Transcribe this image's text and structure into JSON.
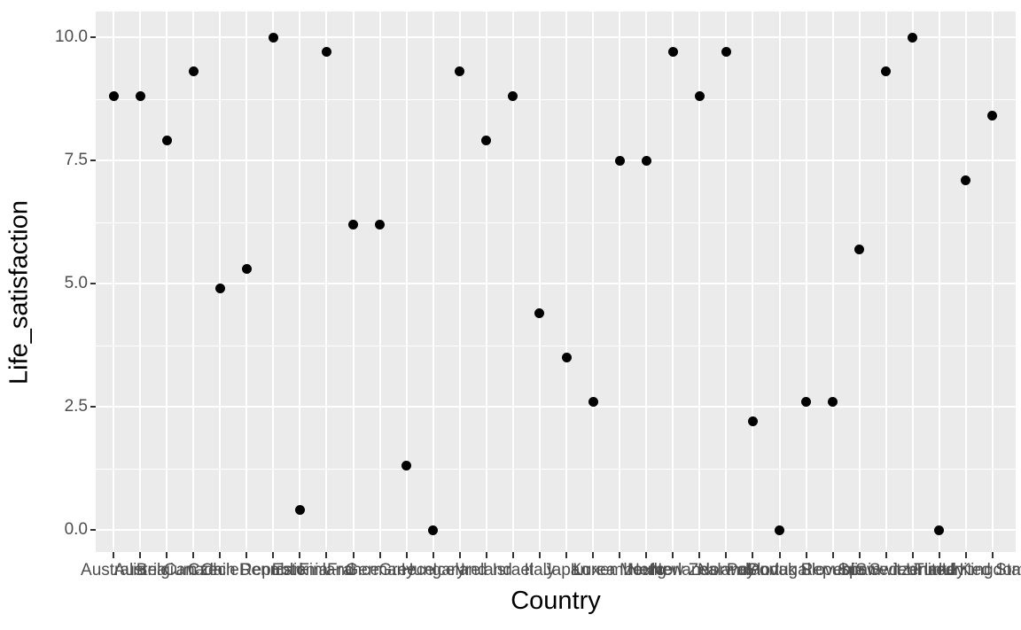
{
  "chart_data": {
    "type": "scatter",
    "title": "",
    "xlabel": "Country",
    "ylabel": "Life_satisfaction",
    "categories": [
      "Australia",
      "Austria",
      "Belgium",
      "Canada",
      "Chile",
      "Czech Republic",
      "Denmark",
      "Estonia",
      "Finland",
      "France",
      "Germany",
      "Greece",
      "Hungary",
      "Iceland",
      "Ireland",
      "Israel",
      "Italy",
      "Japan",
      "Korea",
      "Luxembourg",
      "Mexico",
      "Netherlands",
      "New Zealand",
      "Norway",
      "Poland",
      "Portugal",
      "Slovak Republic",
      "Slovenia",
      "Spain",
      "Sweden",
      "Switzerland",
      "Turkey",
      "United Kingdom",
      "United States"
    ],
    "values": [
      8.8,
      8.8,
      7.9,
      9.3,
      4.9,
      5.3,
      10.0,
      0.4,
      9.7,
      6.2,
      6.2,
      1.3,
      0.0,
      9.3,
      7.9,
      8.8,
      4.4,
      3.5,
      2.6,
      7.5,
      7.5,
      9.7,
      8.8,
      9.7,
      2.2,
      0.0,
      2.6,
      2.6,
      5.7,
      9.3,
      10.0,
      0.0,
      7.1,
      8.4
    ],
    "y_ticks": [
      0.0,
      2.5,
      5.0,
      7.5,
      10.0
    ],
    "y_tick_labels": [
      "0.0",
      "2.5",
      "5.0",
      "7.5",
      "10.0"
    ],
    "y_minor_ticks": [
      1.25,
      3.75,
      6.25,
      8.75
    ],
    "ylim": [
      -0.45,
      10.55
    ],
    "grid": "on",
    "legend": "none",
    "theme": {
      "background": "#FFFFFF",
      "panel_background": "#EBEBEB",
      "grid_color": "#FFFFFF",
      "point_color": "#000000",
      "tick_label_color": "#4D4D4D",
      "tick_mark_color": "#333333",
      "axis_title_color": "#000000"
    }
  }
}
